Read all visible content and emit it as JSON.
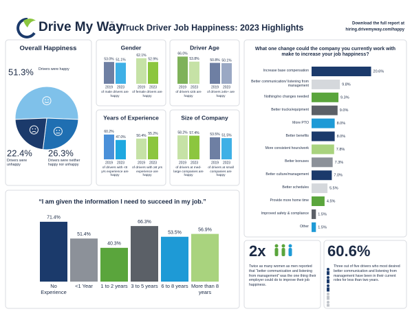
{
  "header": {
    "logo": "Drive My Way",
    "trademark": "™",
    "title": "Truck Driver Job Happiness: 2023 Highlights",
    "download_text": "Download the full report at",
    "download_url": "hiring.drivemyway.com/happy"
  },
  "chart_data": [
    {
      "type": "pie",
      "title": "Overall Happiness",
      "categories": [
        "Drivers were happy",
        "Drivers were neither happy nor unhappy",
        "Drivers were unhappy"
      ],
      "values": [
        51.3,
        26.3,
        22.4
      ],
      "value_labels": [
        "51.3%",
        "26.3%",
        "22.4%"
      ],
      "colors": [
        "#7fc1ea",
        "#1f6fb2",
        "#1b3a6b"
      ]
    },
    {
      "type": "bar-pairs",
      "title": "Gender",
      "x_labels": [
        "2019",
        "2023"
      ],
      "groups": [
        {
          "caption": "of male drivers are happy",
          "colors": [
            "#6e7fa3",
            "#3fb0e6"
          ],
          "values": [
            53.0,
            51.1
          ],
          "value_labels": [
            "53.0%",
            "51.1%"
          ]
        },
        {
          "caption": "of female drivers are happy",
          "colors": [
            "#c6e2a6",
            "#8cc63f"
          ],
          "values": [
            62.1,
            52.9
          ],
          "value_labels": [
            "62.1%",
            "52.9%"
          ]
        }
      ]
    },
    {
      "type": "bar-pairs",
      "title": "Driver Age",
      "x_labels": [
        "2019",
        "2023"
      ],
      "groups": [
        {
          "caption": "of drivers ≤45 are happy",
          "colors": [
            "#7fb25a",
            "#c6e2a6"
          ],
          "values": [
            66.0,
            53.8
          ],
          "value_labels": [
            "66.0%",
            "53.8%"
          ]
        },
        {
          "caption": "of drivers ≥45+ are happy",
          "colors": [
            "#6e7fa3",
            "#9aa8c4"
          ],
          "values": [
            50.8,
            50.1
          ],
          "value_labels": [
            "50.8%",
            "50.1%"
          ]
        }
      ]
    },
    {
      "type": "bar-pairs",
      "title": "Years of Experience",
      "x_labels": [
        "2019",
        "2023"
      ],
      "groups": [
        {
          "caption": "of drivers with <8 yrs experience are happy",
          "colors": [
            "#4a90d9",
            "#1fa8e0"
          ],
          "values": [
            60.2,
            47.0
          ],
          "value_labels": [
            "60.2%",
            "47.0%"
          ]
        },
        {
          "caption": "of drivers with ≥8 yrs experience are happy",
          "colors": [
            "#c6e2a6",
            "#8cc63f"
          ],
          "values": [
            50.4,
            55.2
          ],
          "value_labels": [
            "50.4%",
            "55.2%"
          ]
        }
      ]
    },
    {
      "type": "bar-pairs",
      "title": "Size of Company",
      "x_labels": [
        "2019",
        "2023"
      ],
      "groups": [
        {
          "caption": "of drivers at med-large companies are happy",
          "colors": [
            "#c6e2a6",
            "#8cc63f"
          ],
          "values": [
            58.2,
            57.4
          ],
          "value_labels": [
            "58.2%",
            "57.4%"
          ]
        },
        {
          "caption": "of drivers at small companies are happy",
          "colors": [
            "#6e7fa3",
            "#3fb0e6"
          ],
          "values": [
            53.5,
            51.5
          ],
          "value_labels": [
            "53.5%",
            "51.5%"
          ]
        }
      ]
    },
    {
      "type": "bar",
      "title": "“I am given the information I need to succeed in my job.”",
      "categories": [
        "No Experience",
        "<1 Year",
        "1 to 2 years",
        "3 to 5 years",
        "6 to 8 years",
        "More than 8 years"
      ],
      "values": [
        71.4,
        51.4,
        40.3,
        66.3,
        53.5,
        56.9
      ],
      "value_labels": [
        "71.4%",
        "51.4%",
        "40.3%",
        "66.3%",
        "53.5%",
        "56.9%"
      ],
      "colors": [
        "#1b3a6b",
        "#8c9199",
        "#5aa53c",
        "#5b6067",
        "#1e9ad6",
        "#a9d37e"
      ]
    },
    {
      "type": "hbar",
      "title": "What one change could the company you currently work with make to increase your job happiness?",
      "categories": [
        "Increase base compensation",
        "Better communication/ listening from management",
        "Nothing/no changes needed",
        "Better trucks/equipment",
        "More PTO",
        "Better benefits",
        "More consistent hours/work",
        "Better bonuses",
        "Better culture/management",
        "Better schedules",
        "Provide more home time",
        "Improved safety & compliance",
        "Other"
      ],
      "values": [
        20.6,
        9.8,
        9.3,
        9.0,
        8.0,
        8.0,
        7.8,
        7.3,
        7.0,
        5.5,
        4.5,
        1.5,
        1.5
      ],
      "value_labels": [
        "20.6%",
        "9.8%",
        "9.3%",
        "9.0%",
        "8.0%",
        "8.0%",
        "7.8%",
        "7.3%",
        "7.0%",
        "5.5%",
        "4.5%",
        "1.5%",
        "1.5%"
      ],
      "colors": [
        "#1b3a6b",
        "#d5d8dc",
        "#5aa53c",
        "#5b6067",
        "#1e9ad6",
        "#1b3a6b",
        "#a9d37e",
        "#8c9199",
        "#1b3a6b",
        "#d5d8dc",
        "#5aa53c",
        "#5b6067",
        "#1e9ad6"
      ]
    }
  ],
  "stats": [
    {
      "figure": "2x",
      "text": "Twice as many women as men reported that “better communication and listening from management” was the one thing their employer could do to improve their job happiness."
    },
    {
      "figure": "60.6%",
      "text": "Three out of five drivers who most desired better communication and listening from management have been in their current roles for less than two years."
    }
  ]
}
